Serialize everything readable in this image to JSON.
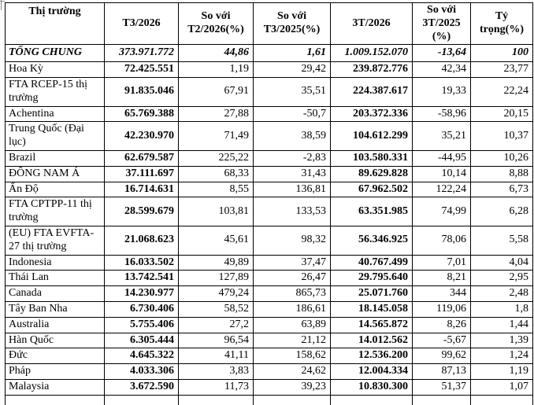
{
  "table": {
    "headers": [
      "Thị trường",
      "T3/2026",
      "So với T2/2026(%)",
      "So với T3/2025(%)",
      "3T/2026",
      "So với 3T/2025 (%)",
      "Tỷ trọng(%)"
    ],
    "total_row": {
      "cells": [
        "TỔNG CHUNG",
        "373.971.772",
        "44,86",
        "1,61",
        "1.009.152.070",
        "-13,64",
        "100"
      ]
    },
    "rows": [
      {
        "cells": [
          "Hoa Kỳ",
          "72.425.551",
          "1,19",
          "29,42",
          "239.872.776",
          "42,34",
          "23,77"
        ]
      },
      {
        "cells": [
          "FTA RCEP-15 thị trường",
          "91.835.046",
          "67,91",
          "35,51",
          "224.387.617",
          "19,33",
          "22,24"
        ]
      },
      {
        "cells": [
          "Achentina",
          "65.769.388",
          "27,88",
          "-50,7",
          "203.372.336",
          "-58,96",
          "20,15"
        ]
      },
      {
        "cells": [
          "Trung Quốc (Đại lục)",
          "42.230.970",
          "71,49",
          "38,59",
          "104.612.299",
          "35,21",
          "10,37"
        ]
      },
      {
        "cells": [
          "Brazil",
          "62.679.587",
          "225,22",
          "-2,83",
          "103.580.331",
          "-44,95",
          "10,26"
        ]
      },
      {
        "cells": [
          "ĐÔNG NAM Á",
          "37.111.697",
          "68,33",
          "31,43",
          "89.629.828",
          "10,14",
          "8,88"
        ]
      },
      {
        "cells": [
          "Ấn Độ",
          "16.714.631",
          "8,55",
          "136,81",
          "67.962.502",
          "122,24",
          "6,73"
        ]
      },
      {
        "cells": [
          "FTA CPTPP-11 thị trường",
          "28.599.679",
          "103,81",
          "133,53",
          "63.351.985",
          "74,99",
          "6,28"
        ]
      },
      {
        "cells": [
          "(EU) FTA EVFTA-27 thị trường",
          "21.068.623",
          "45,61",
          "98,32",
          "56.346.925",
          "78,06",
          "5,58"
        ]
      },
      {
        "cells": [
          "Indonesia",
          "16.033.502",
          "49,89",
          "37,47",
          "40.767.499",
          "7,01",
          "4,04"
        ]
      },
      {
        "cells": [
          "Thái Lan",
          "13.742.541",
          "127,89",
          "26,47",
          "29.795.640",
          "8,21",
          "2,95"
        ]
      },
      {
        "cells": [
          "Canada",
          "14.230.977",
          "479,24",
          "865,73",
          "25.071.760",
          "344",
          "2,48"
        ]
      },
      {
        "cells": [
          "Tây Ban Nha",
          "6.730.406",
          "58,52",
          "186,61",
          "18.145.058",
          "119,06",
          "1,8"
        ]
      },
      {
        "cells": [
          "Australia",
          "5.755.406",
          "27,2",
          "63,89",
          "14.565.872",
          "8,26",
          "1,44"
        ]
      },
      {
        "cells": [
          "Hàn Quốc",
          "6.305.444",
          "96,54",
          "21,12",
          "14.012.562",
          "-5,67",
          "1,39"
        ]
      },
      {
        "cells": [
          "Đức",
          "4.645.322",
          "41,11",
          "158,62",
          "12.536.200",
          "99,62",
          "1,24"
        ]
      },
      {
        "cells": [
          "Pháp",
          "4.033.306",
          "3,83",
          "24,62",
          "12.004.334",
          "87,13",
          "1,19"
        ]
      },
      {
        "cells": [
          "Malaysia",
          "3.672.590",
          "11,73",
          "39,23",
          "10.830.300",
          "51,37",
          "1,07"
        ]
      }
    ]
  }
}
